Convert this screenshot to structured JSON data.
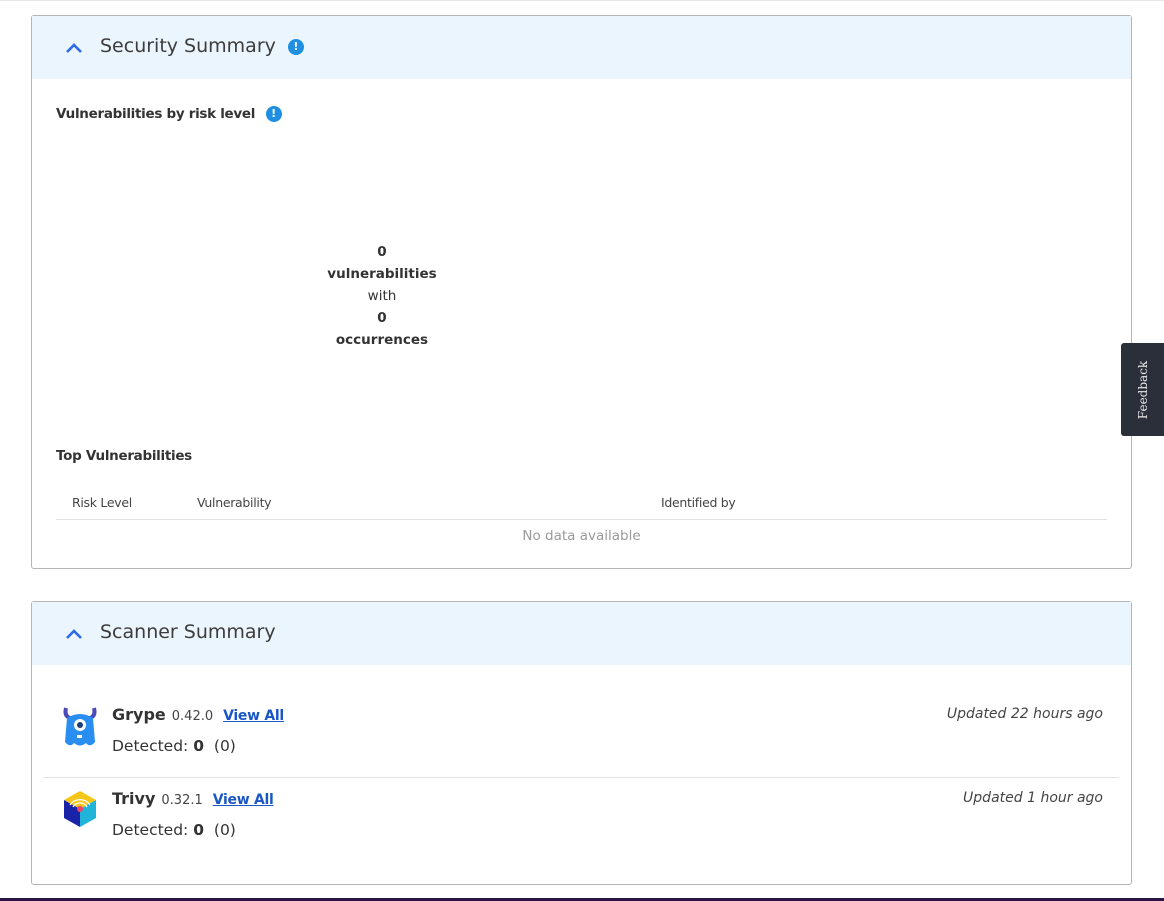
{
  "security_summary": {
    "title": "Security Summary",
    "chart_heading": "Vulnerabilities by risk level",
    "stats": {
      "vuln_count": "0",
      "vuln_label": "vulnerabilities",
      "with": "with",
      "occ_count": "0",
      "occ_label": "occurrences"
    },
    "top_heading": "Top Vulnerabilities",
    "table": {
      "columns": [
        "Risk Level",
        "Vulnerability",
        "Identified by"
      ],
      "empty": "No data available"
    }
  },
  "scanner_summary": {
    "title": "Scanner Summary",
    "scanners": [
      {
        "name": "Grype",
        "version": "0.42.0",
        "link": "View All",
        "detected_label": "Detected:",
        "detected": "0",
        "detected_paren": "(0)",
        "updated": "Updated 22 hours ago",
        "icon": "grype-logo"
      },
      {
        "name": "Trivy",
        "version": "0.32.1",
        "link": "View All",
        "detected_label": "Detected:",
        "detected": "0",
        "detected_paren": "(0)",
        "updated": "Updated 1 hour ago",
        "icon": "trivy-logo"
      }
    ]
  },
  "feedback": {
    "label": "Feedback"
  },
  "colors": {
    "accent": "#1e8fe1",
    "header_bg": "#eaf5fd",
    "link": "#1a56c4"
  }
}
